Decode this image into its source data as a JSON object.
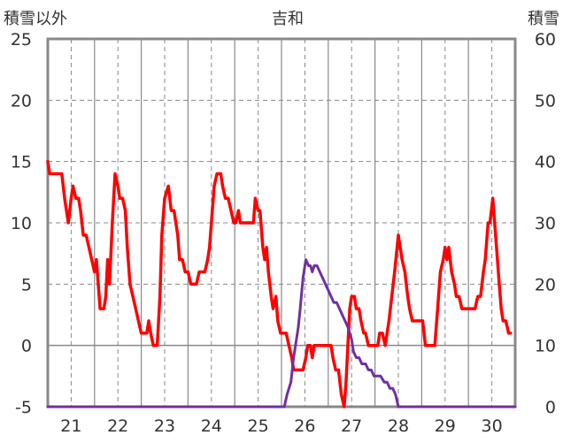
{
  "chart_data": {
    "type": "line",
    "title": "吉和",
    "y_left_label": "積雪以外",
    "y_right_label": "積雪",
    "y_left_range": [
      -5,
      25
    ],
    "y_left_ticks": [
      "-5",
      "0",
      "5",
      "10",
      "15",
      "20",
      "25"
    ],
    "y_right_range": [
      0,
      60
    ],
    "y_right_ticks": [
      "0",
      "10",
      "20",
      "30",
      "40",
      "50",
      "60"
    ],
    "x_range": [
      20.5,
      30.5
    ],
    "x_ticks": [
      "21",
      "22",
      "23",
      "24",
      "25",
      "26",
      "27",
      "28",
      "29",
      "30"
    ],
    "grid": true,
    "series": [
      {
        "color": "#ff0000",
        "axis": "left",
        "points": [
          [
            20.5,
            15
          ],
          [
            20.54,
            14
          ],
          [
            20.7,
            14
          ],
          [
            20.8,
            14
          ],
          [
            20.86,
            12
          ],
          [
            20.94,
            10
          ],
          [
            21.0,
            12
          ],
          [
            21.04,
            13
          ],
          [
            21.1,
            12
          ],
          [
            21.16,
            12
          ],
          [
            21.2,
            11
          ],
          [
            21.26,
            9
          ],
          [
            21.32,
            9
          ],
          [
            21.38,
            8
          ],
          [
            21.44,
            7
          ],
          [
            21.5,
            6
          ],
          [
            21.54,
            7
          ],
          [
            21.62,
            3
          ],
          [
            21.7,
            3
          ],
          [
            21.74,
            4
          ],
          [
            21.78,
            7
          ],
          [
            21.82,
            5
          ],
          [
            21.88,
            10
          ],
          [
            21.94,
            14
          ],
          [
            22.0,
            13
          ],
          [
            22.04,
            12
          ],
          [
            22.1,
            12
          ],
          [
            22.16,
            11
          ],
          [
            22.2,
            8
          ],
          [
            22.26,
            5
          ],
          [
            22.32,
            4
          ],
          [
            22.38,
            3
          ],
          [
            22.44,
            2
          ],
          [
            22.5,
            1
          ],
          [
            22.56,
            1
          ],
          [
            22.62,
            1
          ],
          [
            22.66,
            2
          ],
          [
            22.7,
            1
          ],
          [
            22.76,
            0
          ],
          [
            22.84,
            0
          ],
          [
            22.9,
            4
          ],
          [
            22.94,
            9
          ],
          [
            23.0,
            12
          ],
          [
            23.08,
            13
          ],
          [
            23.14,
            11
          ],
          [
            23.2,
            11
          ],
          [
            23.28,
            9
          ],
          [
            23.32,
            7
          ],
          [
            23.38,
            7
          ],
          [
            23.44,
            6
          ],
          [
            23.5,
            6
          ],
          [
            23.56,
            5
          ],
          [
            23.62,
            5
          ],
          [
            23.68,
            5
          ],
          [
            23.74,
            6
          ],
          [
            23.8,
            6
          ],
          [
            23.86,
            6
          ],
          [
            23.92,
            7
          ],
          [
            23.96,
            8
          ],
          [
            24.0,
            10
          ],
          [
            24.06,
            13
          ],
          [
            24.12,
            14
          ],
          [
            24.2,
            14
          ],
          [
            24.24,
            13
          ],
          [
            24.3,
            12
          ],
          [
            24.36,
            12
          ],
          [
            24.42,
            11
          ],
          [
            24.48,
            10
          ],
          [
            24.52,
            10
          ],
          [
            24.58,
            11
          ],
          [
            24.62,
            10
          ],
          [
            24.7,
            10
          ],
          [
            24.8,
            10
          ],
          [
            24.86,
            10
          ],
          [
            24.9,
            10
          ],
          [
            24.94,
            12
          ],
          [
            25.0,
            11
          ],
          [
            25.04,
            11
          ],
          [
            25.1,
            8
          ],
          [
            25.14,
            7
          ],
          [
            25.18,
            8
          ],
          [
            25.22,
            6
          ],
          [
            25.28,
            4
          ],
          [
            25.32,
            3
          ],
          [
            25.38,
            4
          ],
          [
            25.42,
            2
          ],
          [
            25.48,
            1
          ],
          [
            25.54,
            1
          ],
          [
            25.6,
            1
          ],
          [
            25.66,
            0
          ],
          [
            25.72,
            -1
          ],
          [
            25.76,
            -2
          ],
          [
            25.84,
            -2
          ],
          [
            25.9,
            -2
          ],
          [
            25.96,
            -2
          ],
          [
            26.02,
            -1
          ],
          [
            26.06,
            0
          ],
          [
            26.12,
            0
          ],
          [
            26.16,
            -1
          ],
          [
            26.2,
            0
          ],
          [
            26.28,
            0
          ],
          [
            26.36,
            0
          ],
          [
            26.44,
            0
          ],
          [
            26.5,
            0
          ],
          [
            26.56,
            0
          ],
          [
            26.6,
            -1
          ],
          [
            26.66,
            -2
          ],
          [
            26.72,
            -2
          ],
          [
            26.78,
            -4
          ],
          [
            26.84,
            -5
          ],
          [
            26.88,
            -3
          ],
          [
            26.92,
            0
          ],
          [
            26.96,
            3
          ],
          [
            27.0,
            4
          ],
          [
            27.06,
            4
          ],
          [
            27.1,
            3
          ],
          [
            27.16,
            3
          ],
          [
            27.2,
            2
          ],
          [
            27.26,
            1
          ],
          [
            27.3,
            1
          ],
          [
            27.36,
            0
          ],
          [
            27.44,
            0
          ],
          [
            27.5,
            0
          ],
          [
            27.56,
            0
          ],
          [
            27.6,
            1
          ],
          [
            27.66,
            1
          ],
          [
            27.72,
            0
          ],
          [
            27.76,
            1
          ],
          [
            27.8,
            2
          ],
          [
            27.86,
            4
          ],
          [
            27.92,
            6
          ],
          [
            28.0,
            9
          ],
          [
            28.04,
            8
          ],
          [
            28.08,
            7
          ],
          [
            28.14,
            6
          ],
          [
            28.2,
            4
          ],
          [
            28.24,
            3
          ],
          [
            28.3,
            2
          ],
          [
            28.38,
            2
          ],
          [
            28.46,
            2
          ],
          [
            28.52,
            2
          ],
          [
            28.58,
            0
          ],
          [
            28.64,
            0
          ],
          [
            28.7,
            0
          ],
          [
            28.78,
            0
          ],
          [
            28.84,
            3
          ],
          [
            28.9,
            6
          ],
          [
            28.96,
            7
          ],
          [
            29.0,
            8
          ],
          [
            29.04,
            7
          ],
          [
            29.08,
            8
          ],
          [
            29.14,
            6
          ],
          [
            29.2,
            5
          ],
          [
            29.24,
            4
          ],
          [
            29.3,
            4
          ],
          [
            29.36,
            3
          ],
          [
            29.42,
            3
          ],
          [
            29.48,
            3
          ],
          [
            29.56,
            3
          ],
          [
            29.64,
            3
          ],
          [
            29.7,
            4
          ],
          [
            29.76,
            4
          ],
          [
            29.82,
            6
          ],
          [
            29.86,
            7
          ],
          [
            29.92,
            10
          ],
          [
            29.96,
            10
          ],
          [
            30.02,
            12
          ],
          [
            30.06,
            10
          ],
          [
            30.1,
            8
          ],
          [
            30.16,
            5
          ],
          [
            30.2,
            3
          ],
          [
            30.24,
            2
          ],
          [
            30.3,
            2
          ],
          [
            30.36,
            1
          ],
          [
            30.4,
            1
          ]
        ]
      },
      {
        "color": "#7030a0",
        "axis": "right",
        "points": [
          [
            20.5,
            0
          ],
          [
            25.56,
            0
          ],
          [
            25.62,
            2
          ],
          [
            25.7,
            4
          ],
          [
            25.76,
            8
          ],
          [
            25.82,
            11
          ],
          [
            25.86,
            13
          ],
          [
            25.9,
            16
          ],
          [
            25.96,
            21
          ],
          [
            26.02,
            24
          ],
          [
            26.08,
            23
          ],
          [
            26.12,
            23
          ],
          [
            26.16,
            22
          ],
          [
            26.2,
            23
          ],
          [
            26.26,
            23
          ],
          [
            26.32,
            22
          ],
          [
            26.38,
            21
          ],
          [
            26.44,
            20
          ],
          [
            26.5,
            19
          ],
          [
            26.56,
            18
          ],
          [
            26.62,
            17
          ],
          [
            26.68,
            17
          ],
          [
            26.74,
            16
          ],
          [
            26.8,
            15
          ],
          [
            26.86,
            14
          ],
          [
            26.92,
            13
          ],
          [
            26.96,
            12
          ],
          [
            27.0,
            11
          ],
          [
            27.04,
            9
          ],
          [
            27.1,
            8
          ],
          [
            27.16,
            8
          ],
          [
            27.22,
            7
          ],
          [
            27.3,
            7
          ],
          [
            27.36,
            6
          ],
          [
            27.42,
            6
          ],
          [
            27.48,
            5
          ],
          [
            27.54,
            5
          ],
          [
            27.62,
            5
          ],
          [
            27.7,
            4
          ],
          [
            27.76,
            4
          ],
          [
            27.82,
            3
          ],
          [
            27.88,
            3
          ],
          [
            27.94,
            2
          ],
          [
            28.0,
            0
          ],
          [
            30.5,
            0
          ]
        ]
      }
    ]
  }
}
